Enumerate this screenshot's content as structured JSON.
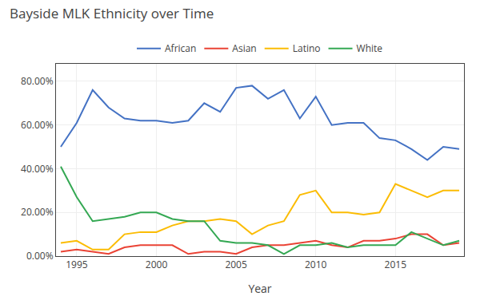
{
  "chart_data": {
    "type": "line",
    "title": "Bayside MLK Ethnicity over Time",
    "xlabel": "Year",
    "x": [
      1994,
      1995,
      1996,
      1997,
      1998,
      1999,
      2000,
      2001,
      2002,
      2003,
      2004,
      2005,
      2006,
      2007,
      2008,
      2009,
      2010,
      2011,
      2012,
      2013,
      2014,
      2015,
      2016,
      2017,
      2018,
      2019
    ],
    "series": [
      {
        "name": "African",
        "color": "#4472c4",
        "values": [
          0.5,
          0.61,
          0.76,
          0.68,
          0.63,
          0.62,
          0.62,
          0.61,
          0.62,
          0.7,
          0.66,
          0.77,
          0.78,
          0.72,
          0.76,
          0.63,
          0.73,
          0.6,
          0.61,
          0.61,
          0.54,
          0.53,
          0.49,
          0.44,
          0.5,
          0.49
        ]
      },
      {
        "name": "Asian",
        "color": "#ea4335",
        "values": [
          0.02,
          0.03,
          0.02,
          0.01,
          0.04,
          0.05,
          0.05,
          0.05,
          0.01,
          0.02,
          0.02,
          0.01,
          0.04,
          0.05,
          0.05,
          0.06,
          0.07,
          0.05,
          0.04,
          0.07,
          0.07,
          0.08,
          0.1,
          0.1,
          0.05,
          0.06
        ]
      },
      {
        "name": "Latino",
        "color": "#fbbc04",
        "values": [
          0.06,
          0.07,
          0.03,
          0.03,
          0.1,
          0.11,
          0.11,
          0.14,
          0.16,
          0.16,
          0.17,
          0.16,
          0.1,
          0.14,
          0.16,
          0.28,
          0.3,
          0.2,
          0.2,
          0.19,
          0.2,
          0.33,
          0.3,
          0.27,
          0.3,
          0.3
        ]
      },
      {
        "name": "White",
        "color": "#34a853",
        "values": [
          0.41,
          0.27,
          0.16,
          0.17,
          0.18,
          0.2,
          0.2,
          0.17,
          0.16,
          0.16,
          0.07,
          0.06,
          0.06,
          0.05,
          0.01,
          0.05,
          0.05,
          0.06,
          0.04,
          0.05,
          0.05,
          0.05,
          0.11,
          0.08,
          0.05,
          0.07
        ]
      }
    ],
    "xlim": [
      1993.7,
      2019.3
    ],
    "xticks": [
      1995,
      2000,
      2005,
      2010,
      2015
    ],
    "ylim": [
      0.0,
      0.88
    ],
    "yticks": [
      {
        "value": 0.0,
        "label": "0.00%"
      },
      {
        "value": 0.2,
        "label": "20.00%"
      },
      {
        "value": 0.4,
        "label": "40.00%"
      },
      {
        "value": 0.6,
        "label": "60.00%"
      },
      {
        "value": 0.8,
        "label": "80.00%"
      }
    ],
    "grid": true,
    "legend": "top"
  }
}
